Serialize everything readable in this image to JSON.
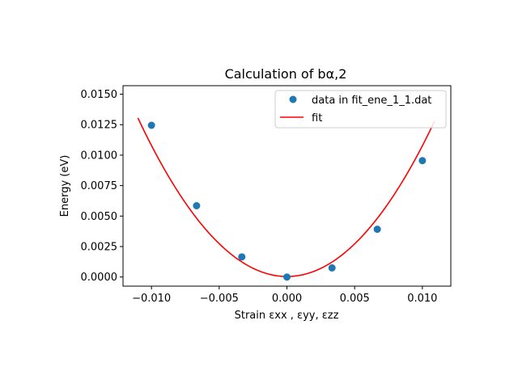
{
  "chart_data": {
    "type": "scatter",
    "title": "Calculation of bα,2",
    "xlabel": "Strain εxx , εyy, εzz",
    "ylabel": "Energy (eV)",
    "xlim": [
      -0.0121,
      0.0121
    ],
    "ylim": [
      -0.00075,
      0.0157
    ],
    "xticks": [
      -0.01,
      -0.005,
      0.0,
      0.005,
      0.01
    ],
    "xtick_labels": [
      "−0.010",
      "−0.005",
      "0.000",
      "0.005",
      "0.010"
    ],
    "yticks": [
      0.0,
      0.0025,
      0.005,
      0.0075,
      0.01,
      0.0125,
      0.015
    ],
    "ytick_labels": [
      "0.0000",
      "0.0025",
      "0.0050",
      "0.0075",
      "0.0100",
      "0.0125",
      "0.0150"
    ],
    "grid": false,
    "legend_position": "top-right",
    "series": [
      {
        "name": "data in fit_ene_1_1.dat",
        "kind": "scatter",
        "color": "#1f77b4",
        "x": [
          -0.01,
          -0.00667,
          -0.00333,
          0.0,
          0.00333,
          0.00667,
          0.01
        ],
        "y": [
          0.01245,
          0.00585,
          0.00165,
          0.0,
          0.00075,
          0.00392,
          0.00955
        ]
      },
      {
        "name": "fit",
        "kind": "line",
        "color": "#ff0000",
        "x_range": [
          -0.011,
          0.0109
        ],
        "quadratic_coeffs": {
          "a": 107.4,
          "b": -0.1325,
          "c": 4.08e-05
        }
      }
    ]
  }
}
